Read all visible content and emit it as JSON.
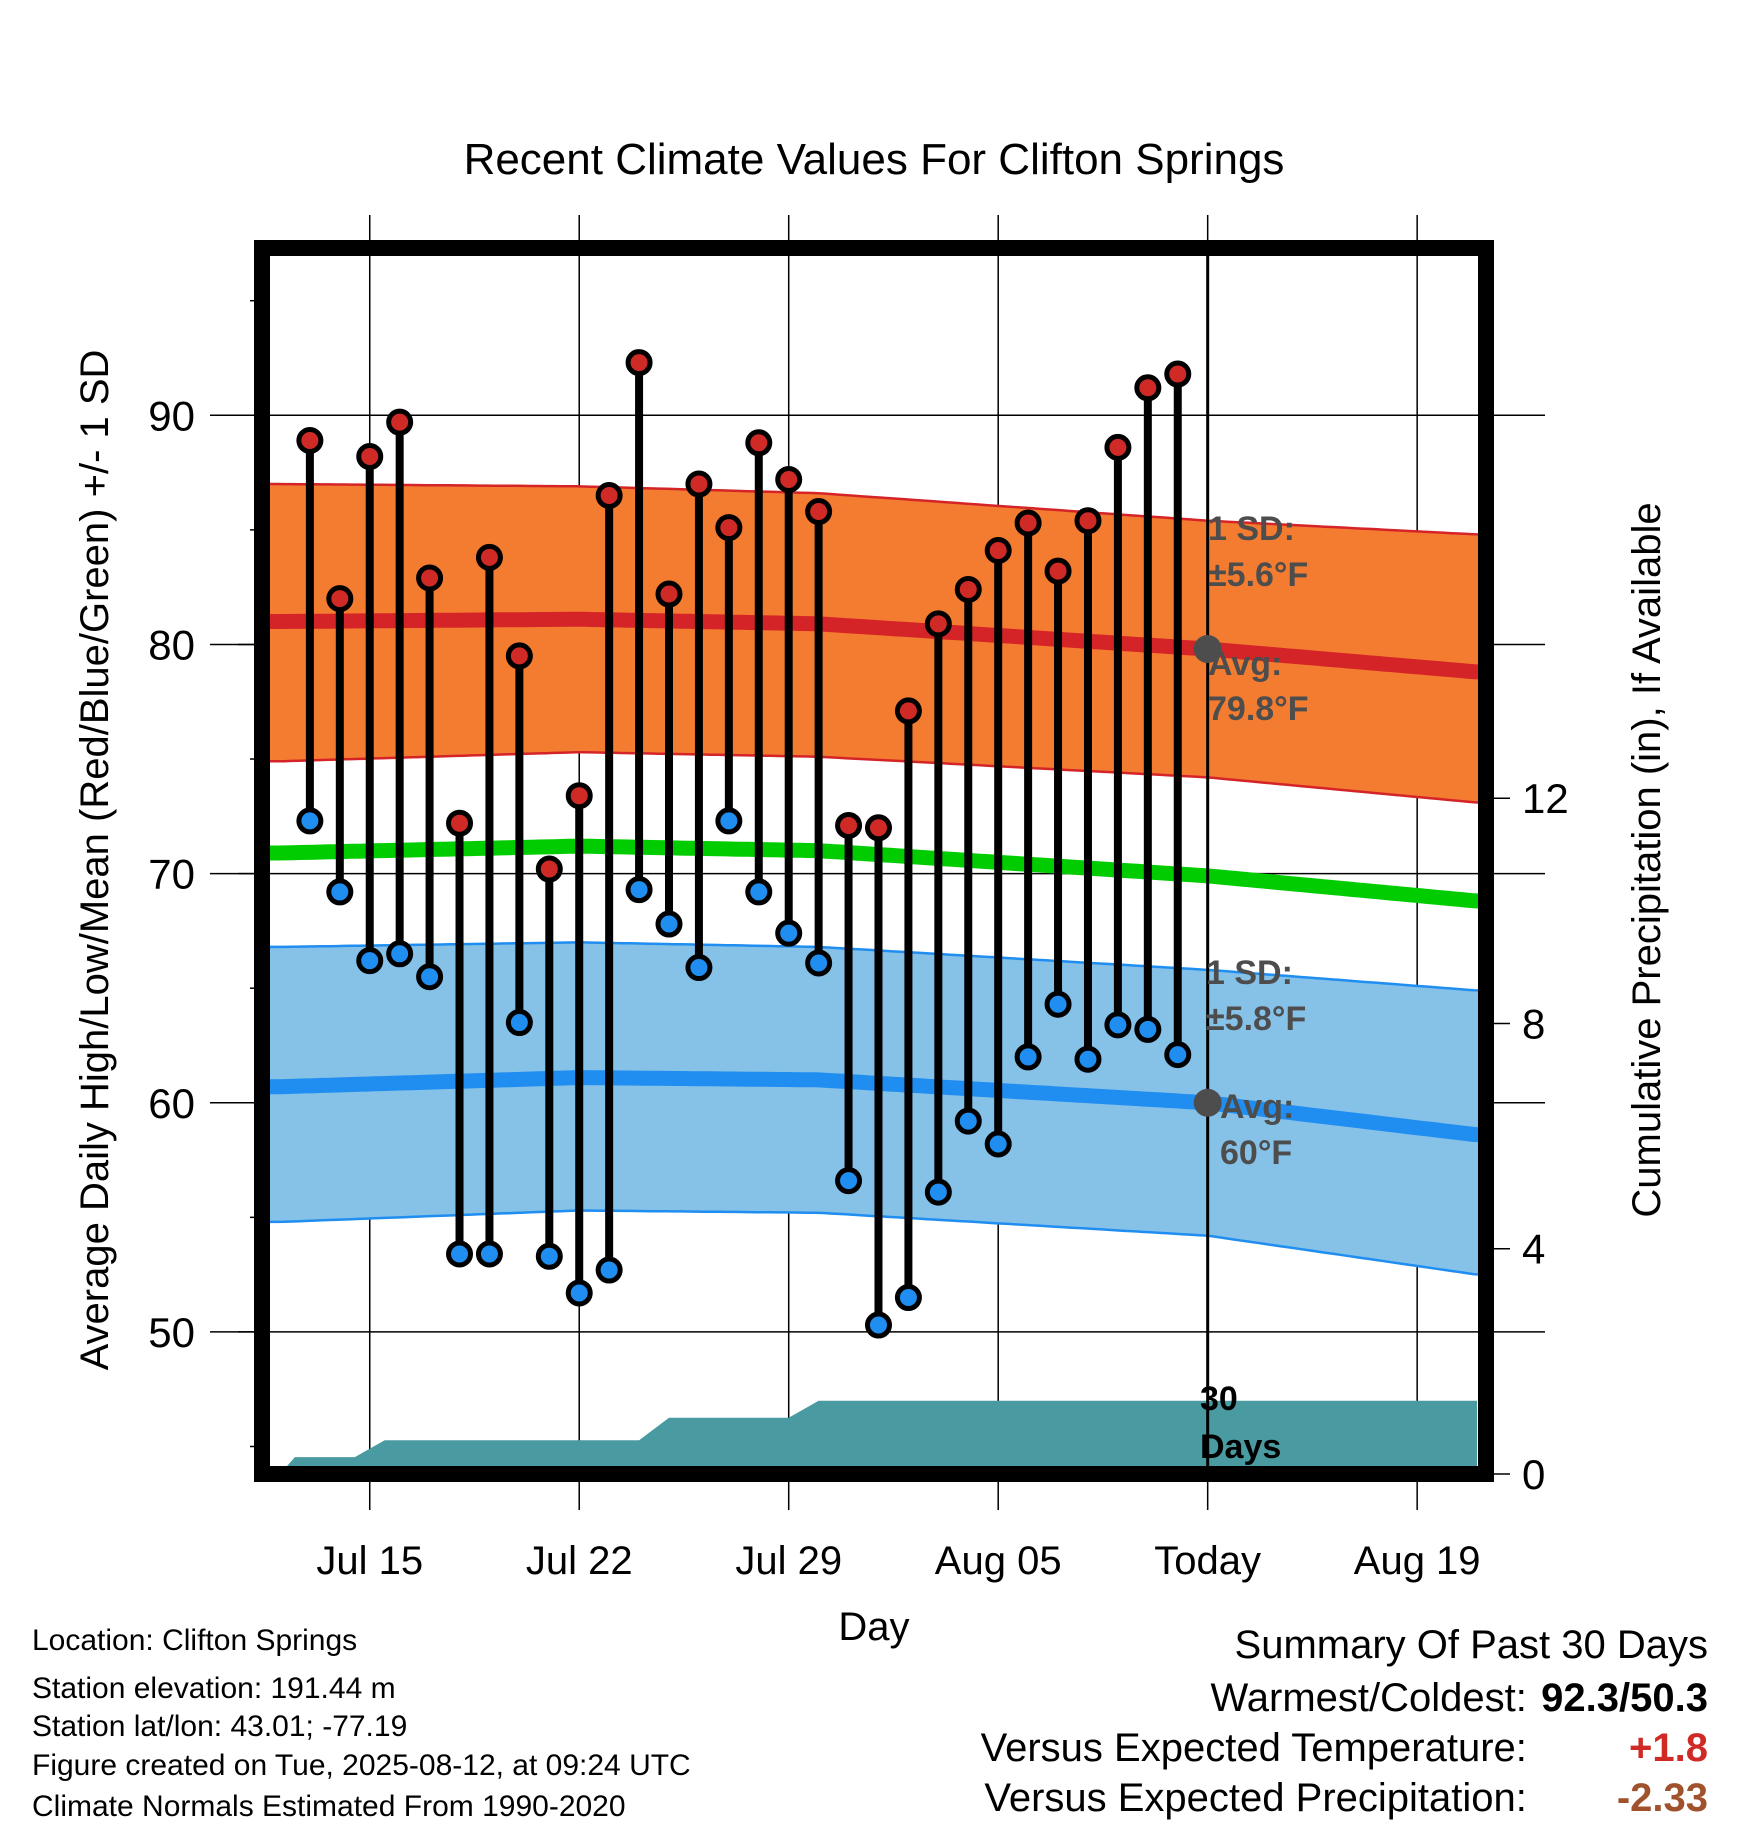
{
  "chart_data": {
    "type": "line",
    "title": "Recent Climate Values For Clifton Springs",
    "xlabel": "Day",
    "ylabel": "Average Daily High/Low/Mean (Red/Blue/Green) +/- 1 SD",
    "y2label": "Cumulative Precipitation (in), If Available",
    "x_ticks": [
      "Jul 15",
      "Jul 22",
      "Jul 29",
      "Aug 05",
      "Today",
      "Aug 19"
    ],
    "x_tick_days": [
      3,
      10,
      17,
      24,
      31,
      38
    ],
    "y_ticks": [
      50,
      60,
      70,
      80,
      90
    ],
    "y2_ticks": [
      0,
      4,
      8,
      12
    ],
    "ylim": [
      43.8,
      97.3
    ],
    "y2lim": [
      0,
      21.77
    ],
    "xlim": [
      -0.6,
      40.3
    ],
    "today_index": 31,
    "grid": true,
    "observed": {
      "high": [
        88.9,
        82.0,
        88.2,
        89.7,
        82.9,
        72.2,
        83.8,
        79.5,
        70.2,
        73.4,
        86.5,
        92.3,
        82.2,
        87.0,
        85.1,
        88.8,
        87.2,
        85.8,
        72.1,
        72.0,
        77.1,
        80.9,
        82.4,
        84.1,
        85.3,
        83.2,
        85.4,
        88.6,
        91.2,
        91.8
      ],
      "low": [
        72.3,
        69.2,
        66.2,
        66.5,
        65.5,
        53.4,
        53.4,
        63.5,
        53.3,
        51.7,
        52.7,
        69.3,
        67.8,
        65.9,
        72.3,
        69.2,
        67.4,
        66.1,
        56.6,
        50.3,
        51.5,
        56.1,
        59.2,
        58.2,
        62.0,
        64.3,
        61.9,
        63.4,
        63.2,
        62.1
      ]
    },
    "normals": {
      "high_avg": [
        [
          0,
          81.0
        ],
        [
          10,
          81.1
        ],
        [
          18,
          80.9
        ],
        [
          31,
          79.8
        ],
        [
          40,
          78.8
        ]
      ],
      "high_upper": [
        [
          0,
          87.0
        ],
        [
          10,
          86.9
        ],
        [
          18,
          86.6
        ],
        [
          31,
          85.4
        ],
        [
          40,
          84.8
        ]
      ],
      "high_lower": [
        [
          0,
          74.9
        ],
        [
          10,
          75.3
        ],
        [
          18,
          75.1
        ],
        [
          31,
          74.2
        ],
        [
          40,
          73.1
        ]
      ],
      "mean_avg": [
        [
          0,
          70.9
        ],
        [
          10,
          71.2
        ],
        [
          18,
          71.0
        ],
        [
          31,
          69.9
        ],
        [
          40,
          68.8
        ]
      ],
      "low_avg": [
        [
          0,
          60.7
        ],
        [
          10,
          61.1
        ],
        [
          18,
          61.0
        ],
        [
          31,
          60.0
        ],
        [
          40,
          58.6
        ]
      ],
      "low_upper": [
        [
          0,
          66.8
        ],
        [
          10,
          67.0
        ],
        [
          18,
          66.8
        ],
        [
          31,
          65.8
        ],
        [
          40,
          64.9
        ]
      ],
      "low_lower": [
        [
          0,
          54.8
        ],
        [
          10,
          55.3
        ],
        [
          18,
          55.2
        ],
        [
          31,
          54.2
        ],
        [
          40,
          52.5
        ]
      ]
    },
    "precip_cumulative": [
      [
        0,
        0
      ],
      [
        0.5,
        0.3
      ],
      [
        2.5,
        0.3
      ],
      [
        3.5,
        0.6
      ],
      [
        12,
        0.6
      ],
      [
        13,
        1.0
      ],
      [
        17,
        1.0
      ],
      [
        18,
        1.3
      ],
      [
        40,
        1.3
      ]
    ],
    "annotations": {
      "high_sd_label": "1 SD:",
      "high_sd_value": "±5.6°F",
      "high_avg_label": "Avg:",
      "high_avg_value": "79.8°F",
      "low_sd_label": "1 SD:",
      "low_sd_value": "±5.8°F",
      "low_avg_label": "Avg:",
      "low_avg_value": "60°F",
      "days_line1": "30",
      "days_line2": "Days"
    },
    "colors": {
      "high_band": "#f47c30",
      "high_line": "#d42428",
      "low_band": "#86c1e8",
      "low_line": "#1f8ef0",
      "mean_line": "#00cc00",
      "precip": "#4a9aa1",
      "high_marker": "#cf2a26",
      "low_marker": "#1f8ef0",
      "today_marker": "#4d4d4d",
      "annotation_text": "#4d4d4d"
    }
  },
  "info": {
    "location": "Location: Clifton Springs",
    "elevation": "Station elevation: 191.44 m",
    "latlon": "Station lat/lon: 43.01; -77.19",
    "created": "Figure created on Tue, 2025-08-12, at 09:24 UTC",
    "normals": "Climate Normals Estimated From 1990-2020"
  },
  "summary": {
    "title": "Summary Of Past 30 Days",
    "extremes_label": "Warmest/Coldest:",
    "extremes_value": "92.3/50.3",
    "temp_label": "Versus Expected Temperature:",
    "temp_value": "+1.8",
    "temp_color": "#cf2a26",
    "precip_label": "Versus Expected Precipitation:",
    "precip_value": "-2.33",
    "precip_color": "#a0522d"
  }
}
